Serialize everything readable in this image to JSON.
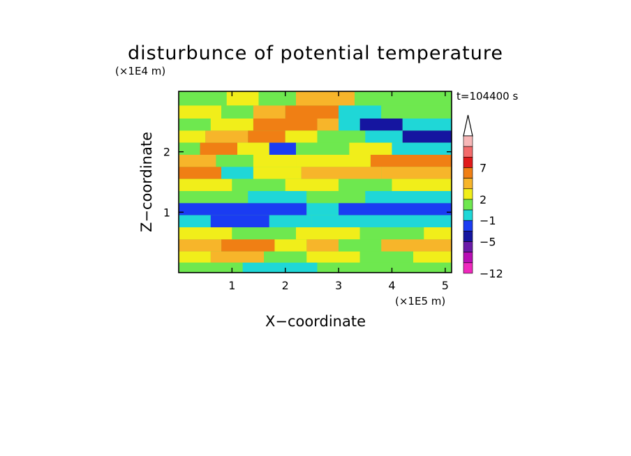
{
  "chart_data": {
    "type": "heatmap",
    "title": "disturbunce of potential temperature",
    "xlabel": "X−coordinate",
    "ylabel": "Z−coordinate",
    "x_unit_label": "(×1E5 m)",
    "y_unit_label": "(×1E4 m)",
    "time_label": "t=104400 s",
    "xlim": [
      0,
      5.12
    ],
    "ylim": [
      0,
      3.0
    ],
    "x_ticks": [
      "1",
      "2",
      "3",
      "4",
      "5"
    ],
    "y_ticks": [
      "1",
      "2"
    ],
    "x_tick_values": [
      1,
      2,
      3,
      4,
      5
    ],
    "y_tick_values": [
      1,
      2
    ],
    "colorbar": {
      "labels": [
        "7",
        "2",
        "−1",
        "−5",
        "−12"
      ],
      "colors": [
        "#f7b7b7",
        "#f36b6b",
        "#e01a1a",
        "#f07f14",
        "#f7b52a",
        "#f1ee1a",
        "#6ee84f",
        "#1fd7d7",
        "#1a3cf2",
        "#1515a0",
        "#6b1aa8",
        "#b80eb4",
        "#ef28bd"
      ],
      "extend": "max"
    },
    "bands": [
      {
        "z": 2.88,
        "cells": [
          [
            0,
            0.9,
            "#6ee84f"
          ],
          [
            0.9,
            1.5,
            "#f1ee1a"
          ],
          [
            1.5,
            2.2,
            "#6ee84f"
          ],
          [
            2.2,
            3.3,
            "#f7b52a"
          ],
          [
            3.3,
            5.12,
            "#6ee84f"
          ]
        ]
      },
      {
        "z": 2.65,
        "cells": [
          [
            0,
            0.8,
            "#f1ee1a"
          ],
          [
            0.8,
            1.4,
            "#6ee84f"
          ],
          [
            1.4,
            2.0,
            "#f7b52a"
          ],
          [
            2.0,
            3.0,
            "#f07f14"
          ],
          [
            3.0,
            3.8,
            "#1fd7d7"
          ],
          [
            3.8,
            5.12,
            "#6ee84f"
          ]
        ]
      },
      {
        "z": 2.45,
        "cells": [
          [
            0,
            0.6,
            "#6ee84f"
          ],
          [
            0.6,
            1.4,
            "#f1ee1a"
          ],
          [
            1.4,
            2.6,
            "#f07f14"
          ],
          [
            2.6,
            3.0,
            "#f7b52a"
          ],
          [
            3.0,
            3.4,
            "#1fd7d7"
          ],
          [
            3.4,
            4.2,
            "#1515a0"
          ],
          [
            4.2,
            5.12,
            "#1fd7d7"
          ]
        ]
      },
      {
        "z": 2.25,
        "cells": [
          [
            0,
            0.5,
            "#f1ee1a"
          ],
          [
            0.5,
            1.3,
            "#f7b52a"
          ],
          [
            1.3,
            2.0,
            "#f07f14"
          ],
          [
            2.0,
            2.6,
            "#f1ee1a"
          ],
          [
            2.6,
            3.5,
            "#6ee84f"
          ],
          [
            3.5,
            4.2,
            "#1fd7d7"
          ],
          [
            4.2,
            5.12,
            "#1515a0"
          ]
        ]
      },
      {
        "z": 2.05,
        "cells": [
          [
            0,
            0.4,
            "#6ee84f"
          ],
          [
            0.4,
            1.1,
            "#f07f14"
          ],
          [
            1.1,
            1.7,
            "#f1ee1a"
          ],
          [
            1.7,
            2.2,
            "#1a3cf2"
          ],
          [
            2.2,
            3.2,
            "#6ee84f"
          ],
          [
            3.2,
            4.0,
            "#f1ee1a"
          ],
          [
            4.0,
            5.12,
            "#1fd7d7"
          ]
        ]
      },
      {
        "z": 1.85,
        "cells": [
          [
            0,
            0.7,
            "#f7b52a"
          ],
          [
            0.7,
            1.4,
            "#6ee84f"
          ],
          [
            1.4,
            2.2,
            "#f1ee1a"
          ],
          [
            2.2,
            3.6,
            "#f1ee1a"
          ],
          [
            3.6,
            5.12,
            "#f07f14"
          ]
        ]
      },
      {
        "z": 1.65,
        "cells": [
          [
            0,
            0.8,
            "#f07f14"
          ],
          [
            0.8,
            1.4,
            "#1fd7d7"
          ],
          [
            1.4,
            2.3,
            "#f1ee1a"
          ],
          [
            2.3,
            3.8,
            "#f7b52a"
          ],
          [
            3.8,
            5.12,
            "#f7b52a"
          ]
        ]
      },
      {
        "z": 1.45,
        "cells": [
          [
            0,
            1.0,
            "#f1ee1a"
          ],
          [
            1.0,
            2.0,
            "#6ee84f"
          ],
          [
            2.0,
            3.0,
            "#f1ee1a"
          ],
          [
            3.0,
            4.0,
            "#6ee84f"
          ],
          [
            4.0,
            5.12,
            "#f1ee1a"
          ]
        ]
      },
      {
        "z": 1.25,
        "cells": [
          [
            0,
            1.3,
            "#6ee84f"
          ],
          [
            1.3,
            2.4,
            "#1fd7d7"
          ],
          [
            2.4,
            3.5,
            "#6ee84f"
          ],
          [
            3.5,
            5.12,
            "#1fd7d7"
          ]
        ]
      },
      {
        "z": 1.05,
        "cells": [
          [
            0,
            2.4,
            "#1a3cf2"
          ],
          [
            2.4,
            3.0,
            "#1fd7d7"
          ],
          [
            3.0,
            5.12,
            "#1a3cf2"
          ]
        ]
      },
      {
        "z": 0.85,
        "cells": [
          [
            0,
            0.6,
            "#1fd7d7"
          ],
          [
            0.6,
            1.7,
            "#1a3cf2"
          ],
          [
            1.7,
            2.5,
            "#1fd7d7"
          ],
          [
            2.5,
            5.12,
            "#1fd7d7"
          ]
        ]
      },
      {
        "z": 0.65,
        "cells": [
          [
            0,
            1.0,
            "#f1ee1a"
          ],
          [
            1.0,
            2.2,
            "#6ee84f"
          ],
          [
            2.2,
            3.4,
            "#f1ee1a"
          ],
          [
            3.4,
            4.6,
            "#6ee84f"
          ],
          [
            4.6,
            5.12,
            "#f1ee1a"
          ]
        ]
      },
      {
        "z": 0.45,
        "cells": [
          [
            0,
            0.8,
            "#f7b52a"
          ],
          [
            0.8,
            1.8,
            "#f07f14"
          ],
          [
            1.8,
            2.4,
            "#f1ee1a"
          ],
          [
            2.4,
            3.0,
            "#f7b52a"
          ],
          [
            3.0,
            3.8,
            "#6ee84f"
          ],
          [
            3.8,
            5.12,
            "#f7b52a"
          ]
        ]
      },
      {
        "z": 0.25,
        "cells": [
          [
            0,
            0.6,
            "#f1ee1a"
          ],
          [
            0.6,
            1.6,
            "#f7b52a"
          ],
          [
            1.6,
            2.4,
            "#6ee84f"
          ],
          [
            2.4,
            3.4,
            "#f1ee1a"
          ],
          [
            3.4,
            4.4,
            "#6ee84f"
          ],
          [
            4.4,
            5.12,
            "#f1ee1a"
          ]
        ]
      },
      {
        "z": 0.08,
        "cells": [
          [
            0,
            1.2,
            "#6ee84f"
          ],
          [
            1.2,
            2.6,
            "#1fd7d7"
          ],
          [
            2.6,
            5.12,
            "#6ee84f"
          ]
        ]
      }
    ]
  }
}
